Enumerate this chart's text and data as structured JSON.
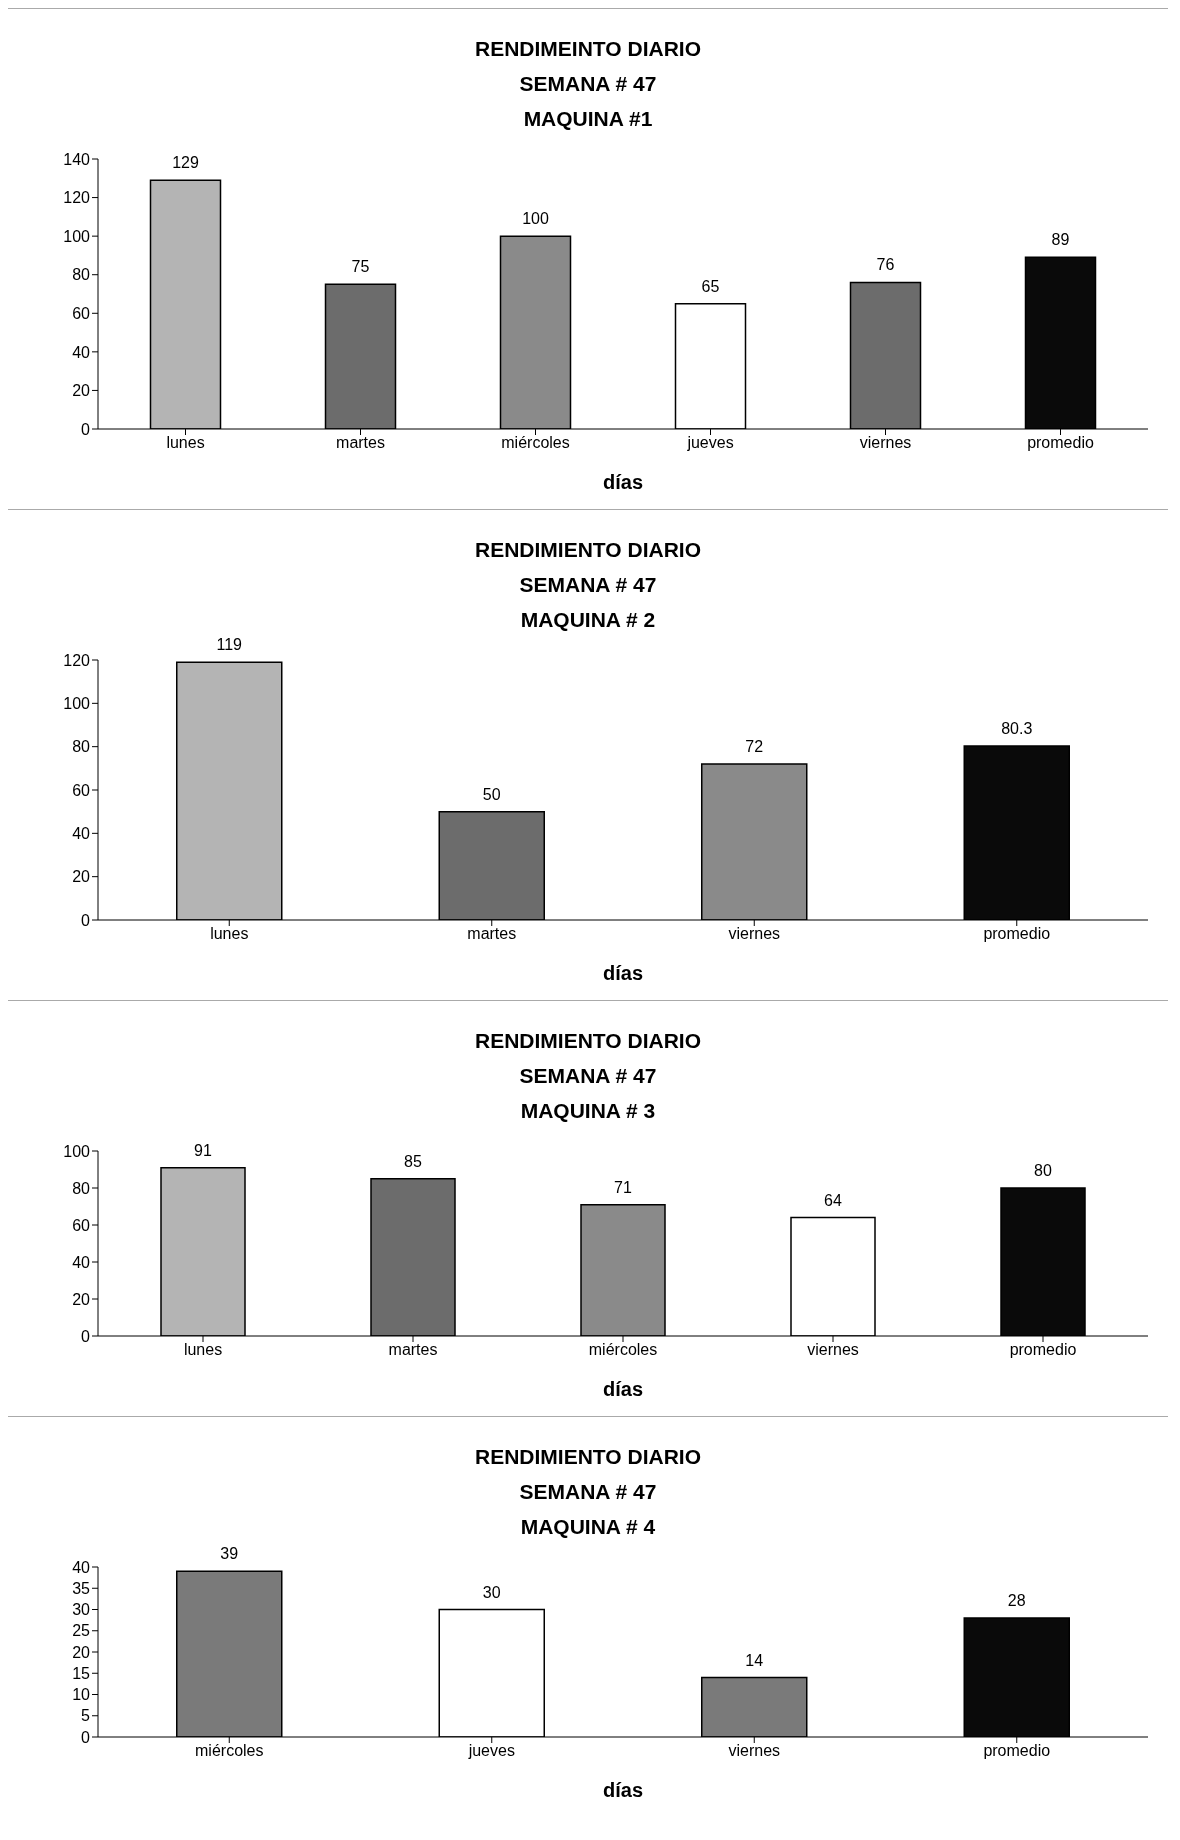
{
  "chart_data": [
    {
      "type": "bar",
      "title": "RENDIMEINTO DIARIO\nSEMANA # 47\nMAQUINA #1",
      "xlabel": "días",
      "categories": [
        "lunes",
        "martes",
        "miércoles",
        "jueves",
        "viernes",
        "promedio"
      ],
      "values": [
        129,
        75,
        100,
        65,
        76,
        89
      ],
      "colors": [
        "#b4b4b4",
        "#6c6c6c",
        "#8a8a8a",
        "#ffffff",
        "#6c6c6c",
        "#0a0a0a"
      ],
      "ylim": [
        0,
        140
      ],
      "yticks": [
        0,
        20,
        40,
        60,
        80,
        100,
        120,
        140
      ],
      "data_labels": true,
      "grid": false,
      "legend": false
    },
    {
      "type": "bar",
      "title": "RENDIMIENTO DIARIO\nSEMANA # 47\nMAQUINA # 2",
      "xlabel": "días",
      "categories": [
        "lunes",
        "martes",
        "viernes",
        "promedio"
      ],
      "values": [
        119,
        50,
        72,
        80.3
      ],
      "colors": [
        "#b4b4b4",
        "#6c6c6c",
        "#8a8a8a",
        "#0a0a0a"
      ],
      "ylim": [
        0,
        120
      ],
      "yticks": [
        0,
        20,
        40,
        60,
        80,
        100,
        120
      ],
      "data_labels": true,
      "grid": false,
      "legend": false
    },
    {
      "type": "bar",
      "title": "RENDIMIENTO DIARIO\nSEMANA # 47\nMAQUINA # 3",
      "xlabel": "días",
      "categories": [
        "lunes",
        "martes",
        "miércoles",
        "viernes",
        "promedio"
      ],
      "values": [
        91,
        85,
        71,
        64,
        80
      ],
      "colors": [
        "#b4b4b4",
        "#6c6c6c",
        "#8a8a8a",
        "#ffffff",
        "#0a0a0a"
      ],
      "ylim": [
        0,
        100
      ],
      "yticks": [
        0,
        20,
        40,
        60,
        80,
        100
      ],
      "data_labels": true,
      "grid": false,
      "legend": false
    },
    {
      "type": "bar",
      "title": "RENDIMIENTO DIARIO\nSEMANA # 47\nMAQUINA # 4",
      "xlabel": "días",
      "categories": [
        "miércoles",
        "jueves",
        "viernes",
        "promedio"
      ],
      "values": [
        39,
        30,
        14,
        28
      ],
      "colors": [
        "#7a7a7a",
        "#ffffff",
        "#7a7a7a",
        "#0a0a0a"
      ],
      "ylim": [
        0,
        40
      ],
      "yticks": [
        0,
        5,
        10,
        15,
        20,
        25,
        30,
        35,
        40
      ],
      "data_labels": true,
      "grid": false,
      "legend": false
    }
  ]
}
